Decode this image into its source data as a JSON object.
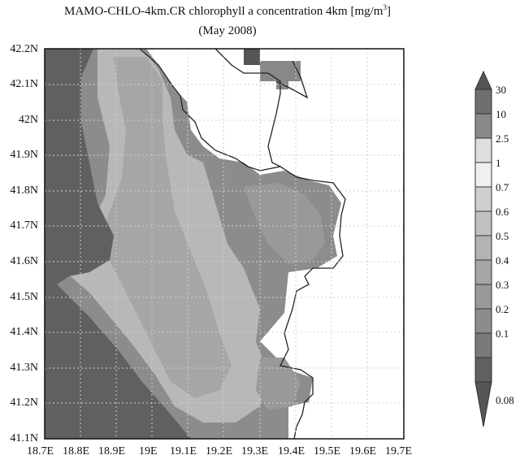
{
  "title": {
    "prefix": "MAMO-CHLO-4km.CR  chlorophyll a concentration 4km [mg/m",
    "sup": "3",
    "suffix": "]"
  },
  "subtitle": "(May 2008)",
  "axes": {
    "y_ticks": [
      "42.2N",
      "42.1N",
      "42N",
      "41.9N",
      "41.8N",
      "41.7N",
      "41.6N",
      "41.5N",
      "41.4N",
      "41.3N",
      "41.2N",
      "41.1N"
    ],
    "x_ticks": [
      "18.7E",
      "18.8E",
      "18.9E",
      "19E",
      "19.1E",
      "19.2E",
      "19.3E",
      "19.4E",
      "19.5E",
      "19.6E",
      "19.7E"
    ]
  },
  "colorbar": {
    "labels": [
      "30",
      "10",
      "2.5",
      "1",
      "0.7",
      "0.6",
      "0.5",
      "0.4",
      "0.3",
      "0.2",
      "0.1",
      "0.08"
    ],
    "colors": [
      "#555555",
      "#6f6f6f",
      "#888888",
      "#dedede",
      "#cfcfcf",
      "#c0c0c0",
      "#b3b3b3",
      "#a6a6a6",
      "#999999",
      "#8c8c8c",
      "#7a7a7a",
      "#606060",
      "#555555"
    ]
  },
  "colors": {
    "deep_sea": "#606060",
    "offshore": "#8c8c8c",
    "mid": "#a6a6a6",
    "nearshore": "#b8b8b8",
    "coastal": "#999999",
    "land": "#ffffff",
    "grid": "#cfcfcf"
  }
}
